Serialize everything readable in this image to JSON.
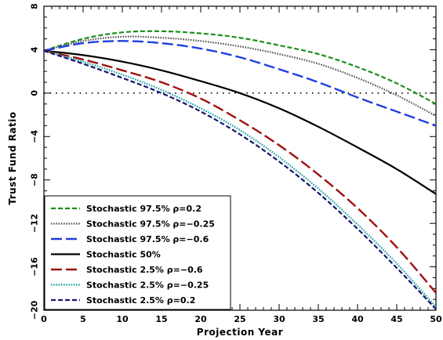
{
  "chart_data": {
    "type": "line",
    "xlabel": "Projection Year",
    "ylabel": "Trust Fund Ratio",
    "xlim": [
      0,
      50
    ],
    "ylim": [
      -20,
      8
    ],
    "xticks": [
      0,
      5,
      10,
      15,
      20,
      25,
      30,
      35,
      40,
      45,
      50
    ],
    "yticks": [
      -20,
      -16,
      -12,
      -8,
      -4,
      0,
      4,
      8
    ],
    "grid": false,
    "reference_line": {
      "y": 0,
      "style": "dotted",
      "color": "#000000"
    },
    "legend": {
      "placement": "bottom-left",
      "entries": [
        {
          "label": "Stochastic 97.5% ρ=0.2",
          "color": "#1a8f1a",
          "dash": "6,3",
          "width": 2.2
        },
        {
          "label": "Stochastic 97.5% ρ=−0.25",
          "color": "#555555",
          "dash": "1.6,1.6",
          "width": 2.2
        },
        {
          "label": "Stochastic 97.5% ρ=−0.6",
          "color": "#1f3fe0",
          "dash": "14,5",
          "width": 2.4
        },
        {
          "label": "Stochastic 50%",
          "color": "#000000",
          "dash": "",
          "width": 2.2
        },
        {
          "label": "Stochastic 2.5% ρ=−0.6",
          "color": "#a01010",
          "dash": "14,5",
          "width": 2.4
        },
        {
          "label": "Stochastic 2.5% ρ=−0.25",
          "color": "#1a9e9e",
          "dash": "1.6,1.6",
          "width": 2.2
        },
        {
          "label": "Stochastic 2.5% ρ=0.2",
          "color": "#141470",
          "dash": "6,3",
          "width": 2.2
        }
      ]
    },
    "x": [
      0,
      5,
      10,
      15,
      20,
      25,
      30,
      35,
      40,
      45,
      50
    ],
    "series": [
      {
        "name": "Stochastic 97.5% ρ=0.2",
        "values": [
          3.9,
          5.0,
          5.6,
          5.7,
          5.5,
          5.1,
          4.4,
          3.6,
          2.4,
          0.9,
          -1.0
        ]
      },
      {
        "name": "Stochastic 97.5% ρ=−0.25",
        "values": [
          3.9,
          4.8,
          5.2,
          5.1,
          4.8,
          4.3,
          3.6,
          2.7,
          1.4,
          -0.2,
          -2.1
        ]
      },
      {
        "name": "Stochastic 97.5% ρ=−0.6",
        "values": [
          3.9,
          4.6,
          4.8,
          4.6,
          4.1,
          3.3,
          2.2,
          1.0,
          -0.4,
          -1.7,
          -3.0
        ]
      },
      {
        "name": "Stochastic 50%",
        "values": [
          3.9,
          3.5,
          2.9,
          2.1,
          1.1,
          0.0,
          -1.4,
          -3.1,
          -5.0,
          -7.0,
          -9.3
        ]
      },
      {
        "name": "Stochastic 2.5% ρ=−0.6",
        "values": [
          3.9,
          3.1,
          2.1,
          1.0,
          -0.5,
          -2.5,
          -4.8,
          -7.5,
          -10.6,
          -14.2,
          -18.4
        ]
      },
      {
        "name": "Stochastic 2.5% ρ=−0.25",
        "values": [
          3.9,
          2.9,
          1.7,
          0.3,
          -1.4,
          -3.4,
          -5.9,
          -8.8,
          -12.1,
          -15.7,
          -19.7
        ]
      },
      {
        "name": "Stochastic 2.5% ρ=0.2",
        "values": [
          3.9,
          2.7,
          1.4,
          0.0,
          -1.7,
          -3.8,
          -6.3,
          -9.2,
          -12.5,
          -16.1,
          -19.9
        ]
      }
    ]
  }
}
